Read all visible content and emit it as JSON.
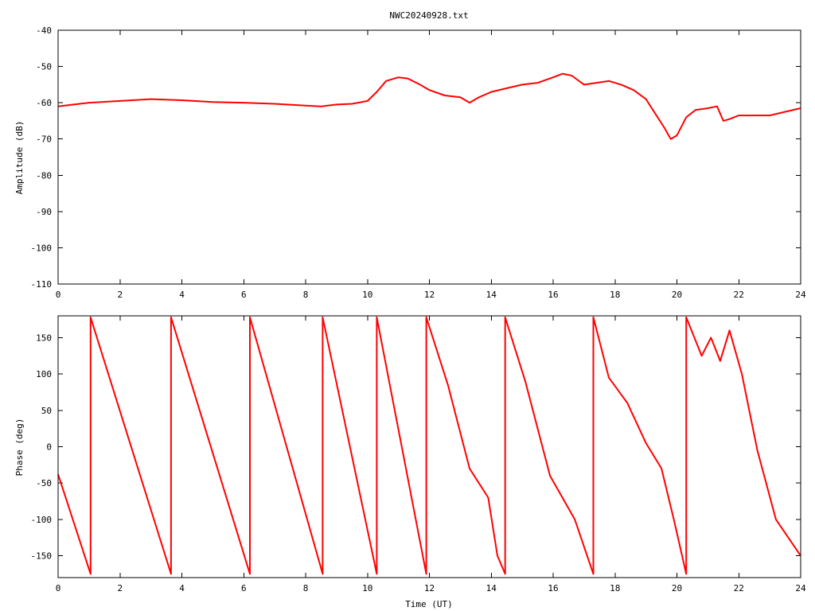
{
  "chart_data": [
    {
      "type": "line",
      "title": "NWC20240928.txt",
      "xlabel": "",
      "ylabel": "Amplitude (dB)",
      "xlim": [
        0,
        24
      ],
      "ylim": [
        -110,
        -40
      ],
      "x_ticks": [
        "0",
        "2",
        "4",
        "6",
        "8",
        "10",
        "12",
        "14",
        "16",
        "18",
        "20",
        "22",
        "24"
      ],
      "y_ticks": [
        "-40",
        "-50",
        "-60",
        "-70",
        "-80",
        "-90",
        "-100",
        "-110"
      ],
      "grid": false,
      "color": "#ff0000",
      "series": [
        {
          "x": [
            0,
            0.5,
            1,
            2,
            3,
            4,
            5,
            6,
            7,
            8,
            8.5,
            9,
            9.5,
            10,
            10.3,
            10.6,
            11,
            11.3,
            11.7,
            12,
            12.5,
            13,
            13.3,
            13.6,
            14,
            14.5,
            15,
            15.5,
            16,
            16.3,
            16.6,
            17,
            17.4,
            17.8,
            18.2,
            18.6,
            19,
            19.3,
            19.6,
            19.8,
            20,
            20.3,
            20.6,
            21,
            21.3,
            21.5,
            21.7,
            22,
            22.5,
            23,
            23.5,
            24
          ],
          "y": [
            -61,
            -60.5,
            -60,
            -59.5,
            -59,
            -59.3,
            -59.8,
            -60,
            -60.3,
            -60.8,
            -61,
            -60.5,
            -60.3,
            -59.5,
            -57,
            -54,
            -53,
            -53.3,
            -55,
            -56.5,
            -58,
            -58.5,
            -60,
            -58.5,
            -57,
            -56,
            -55,
            -54.5,
            -53,
            -52,
            -52.5,
            -55,
            -54.5,
            -54,
            -55,
            -56.5,
            -59,
            -63,
            -67,
            -70,
            -69,
            -64,
            -62,
            -61.5,
            -61,
            -65,
            -64.5,
            -63.5,
            -63.5,
            -63.5,
            -62.5,
            -61.5
          ]
        }
      ]
    },
    {
      "type": "line",
      "title": "",
      "xlabel": "Time (UT)",
      "ylabel": "Phase (deg)",
      "xlim": [
        0,
        24
      ],
      "ylim": [
        -180,
        180
      ],
      "x_ticks": [
        "0",
        "2",
        "4",
        "6",
        "8",
        "10",
        "12",
        "14",
        "16",
        "18",
        "20",
        "22",
        "24"
      ],
      "y_ticks": [
        "150",
        "100",
        "50",
        "0",
        "-50",
        "-100",
        "-150"
      ],
      "grid": false,
      "color": "#ff0000",
      "series": [
        {
          "x": [
            0,
            1.05,
            1.05,
            3.65,
            3.65,
            6.2,
            6.2,
            8.55,
            8.55,
            10.3,
            10.3,
            11.9,
            11.9,
            12.6,
            13.3,
            13.9,
            14.2,
            14.45,
            14.45,
            15.1,
            15.9,
            16.7,
            17.3,
            17.3,
            17.8,
            18.4,
            19.0,
            19.5,
            19.9,
            20.3,
            20.3,
            20.8,
            21.1,
            21.4,
            21.7,
            22.1,
            22.6,
            23.2,
            24
          ],
          "y": [
            -38,
            -175,
            178,
            -175,
            178,
            -175,
            178,
            -175,
            178,
            -175,
            178,
            -175,
            178,
            85,
            -30,
            -70,
            -150,
            -175,
            178,
            90,
            -40,
            -100,
            -175,
            178,
            95,
            60,
            5,
            -30,
            -100,
            -175,
            178,
            125,
            150,
            118,
            160,
            100,
            -5,
            -100,
            -150
          ]
        }
      ]
    }
  ]
}
